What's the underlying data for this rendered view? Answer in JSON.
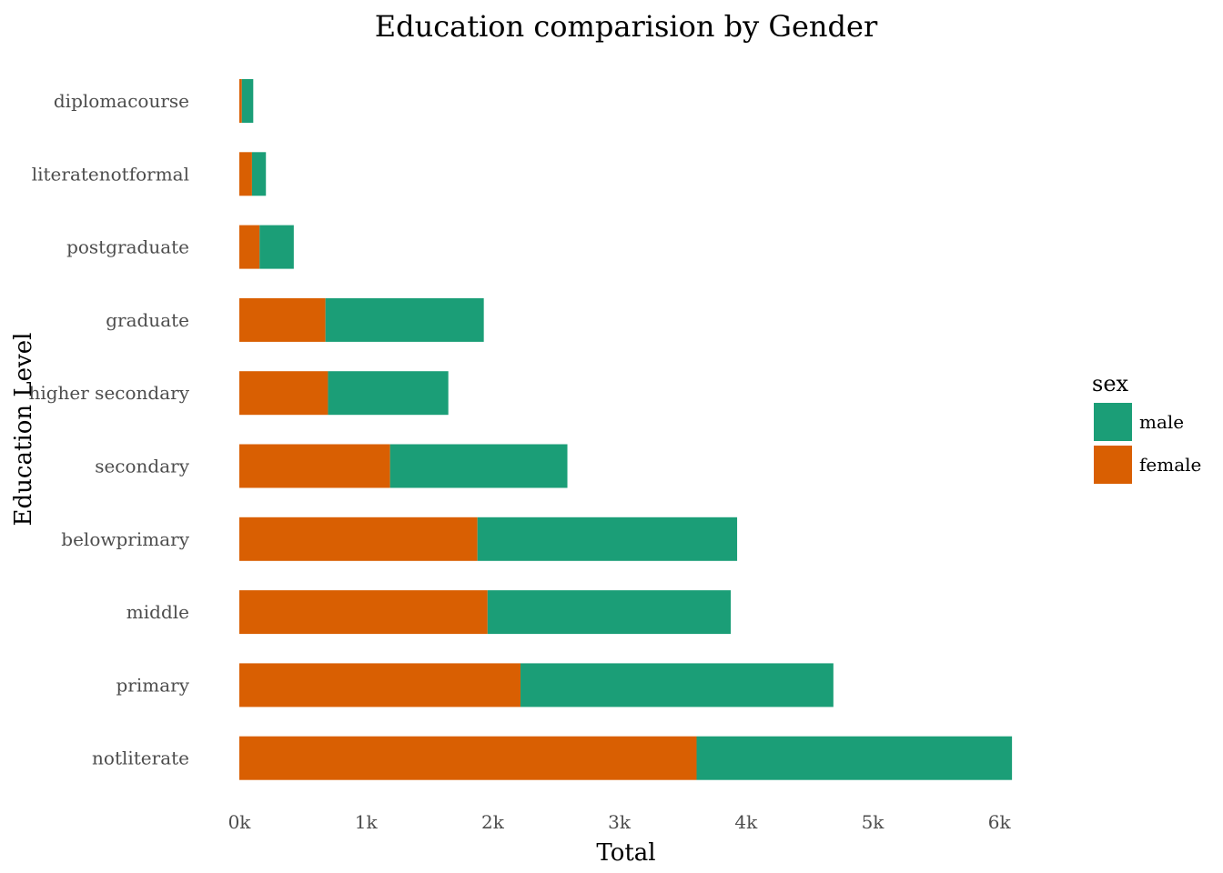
{
  "chart_data": {
    "type": "bar",
    "orientation": "horizontal",
    "stacked": true,
    "title": "Education comparision by Gender",
    "xlabel": "Total",
    "ylabel": "Education Level",
    "categories": [
      "diplomacourse",
      "literatenotformal",
      "postgraduate",
      "graduate",
      "higher secondary",
      "secondary",
      "belowprimary",
      "middle",
      "primary",
      "notliterate"
    ],
    "series": [
      {
        "name": "female",
        "color": "#d95f02",
        "values": [
          20,
          100,
          160,
          680,
          700,
          1190,
          1880,
          1960,
          2220,
          3610
        ]
      },
      {
        "name": "male",
        "color": "#1b9e77",
        "values": [
          90,
          110,
          270,
          1250,
          950,
          1400,
          2050,
          1920,
          2470,
          2490
        ]
      }
    ],
    "xlim": [
      0,
      6100
    ],
    "xticks": [
      0,
      1000,
      2000,
      3000,
      4000,
      5000,
      6000
    ],
    "xtick_labels": [
      "0k",
      "1k",
      "2k",
      "3k",
      "4k",
      "5k",
      "6k"
    ],
    "grid": false,
    "legend": {
      "title": "sex",
      "position": "right",
      "entries": [
        {
          "name": "male",
          "color": "#1b9e77"
        },
        {
          "name": "female",
          "color": "#d95f02"
        }
      ]
    }
  }
}
